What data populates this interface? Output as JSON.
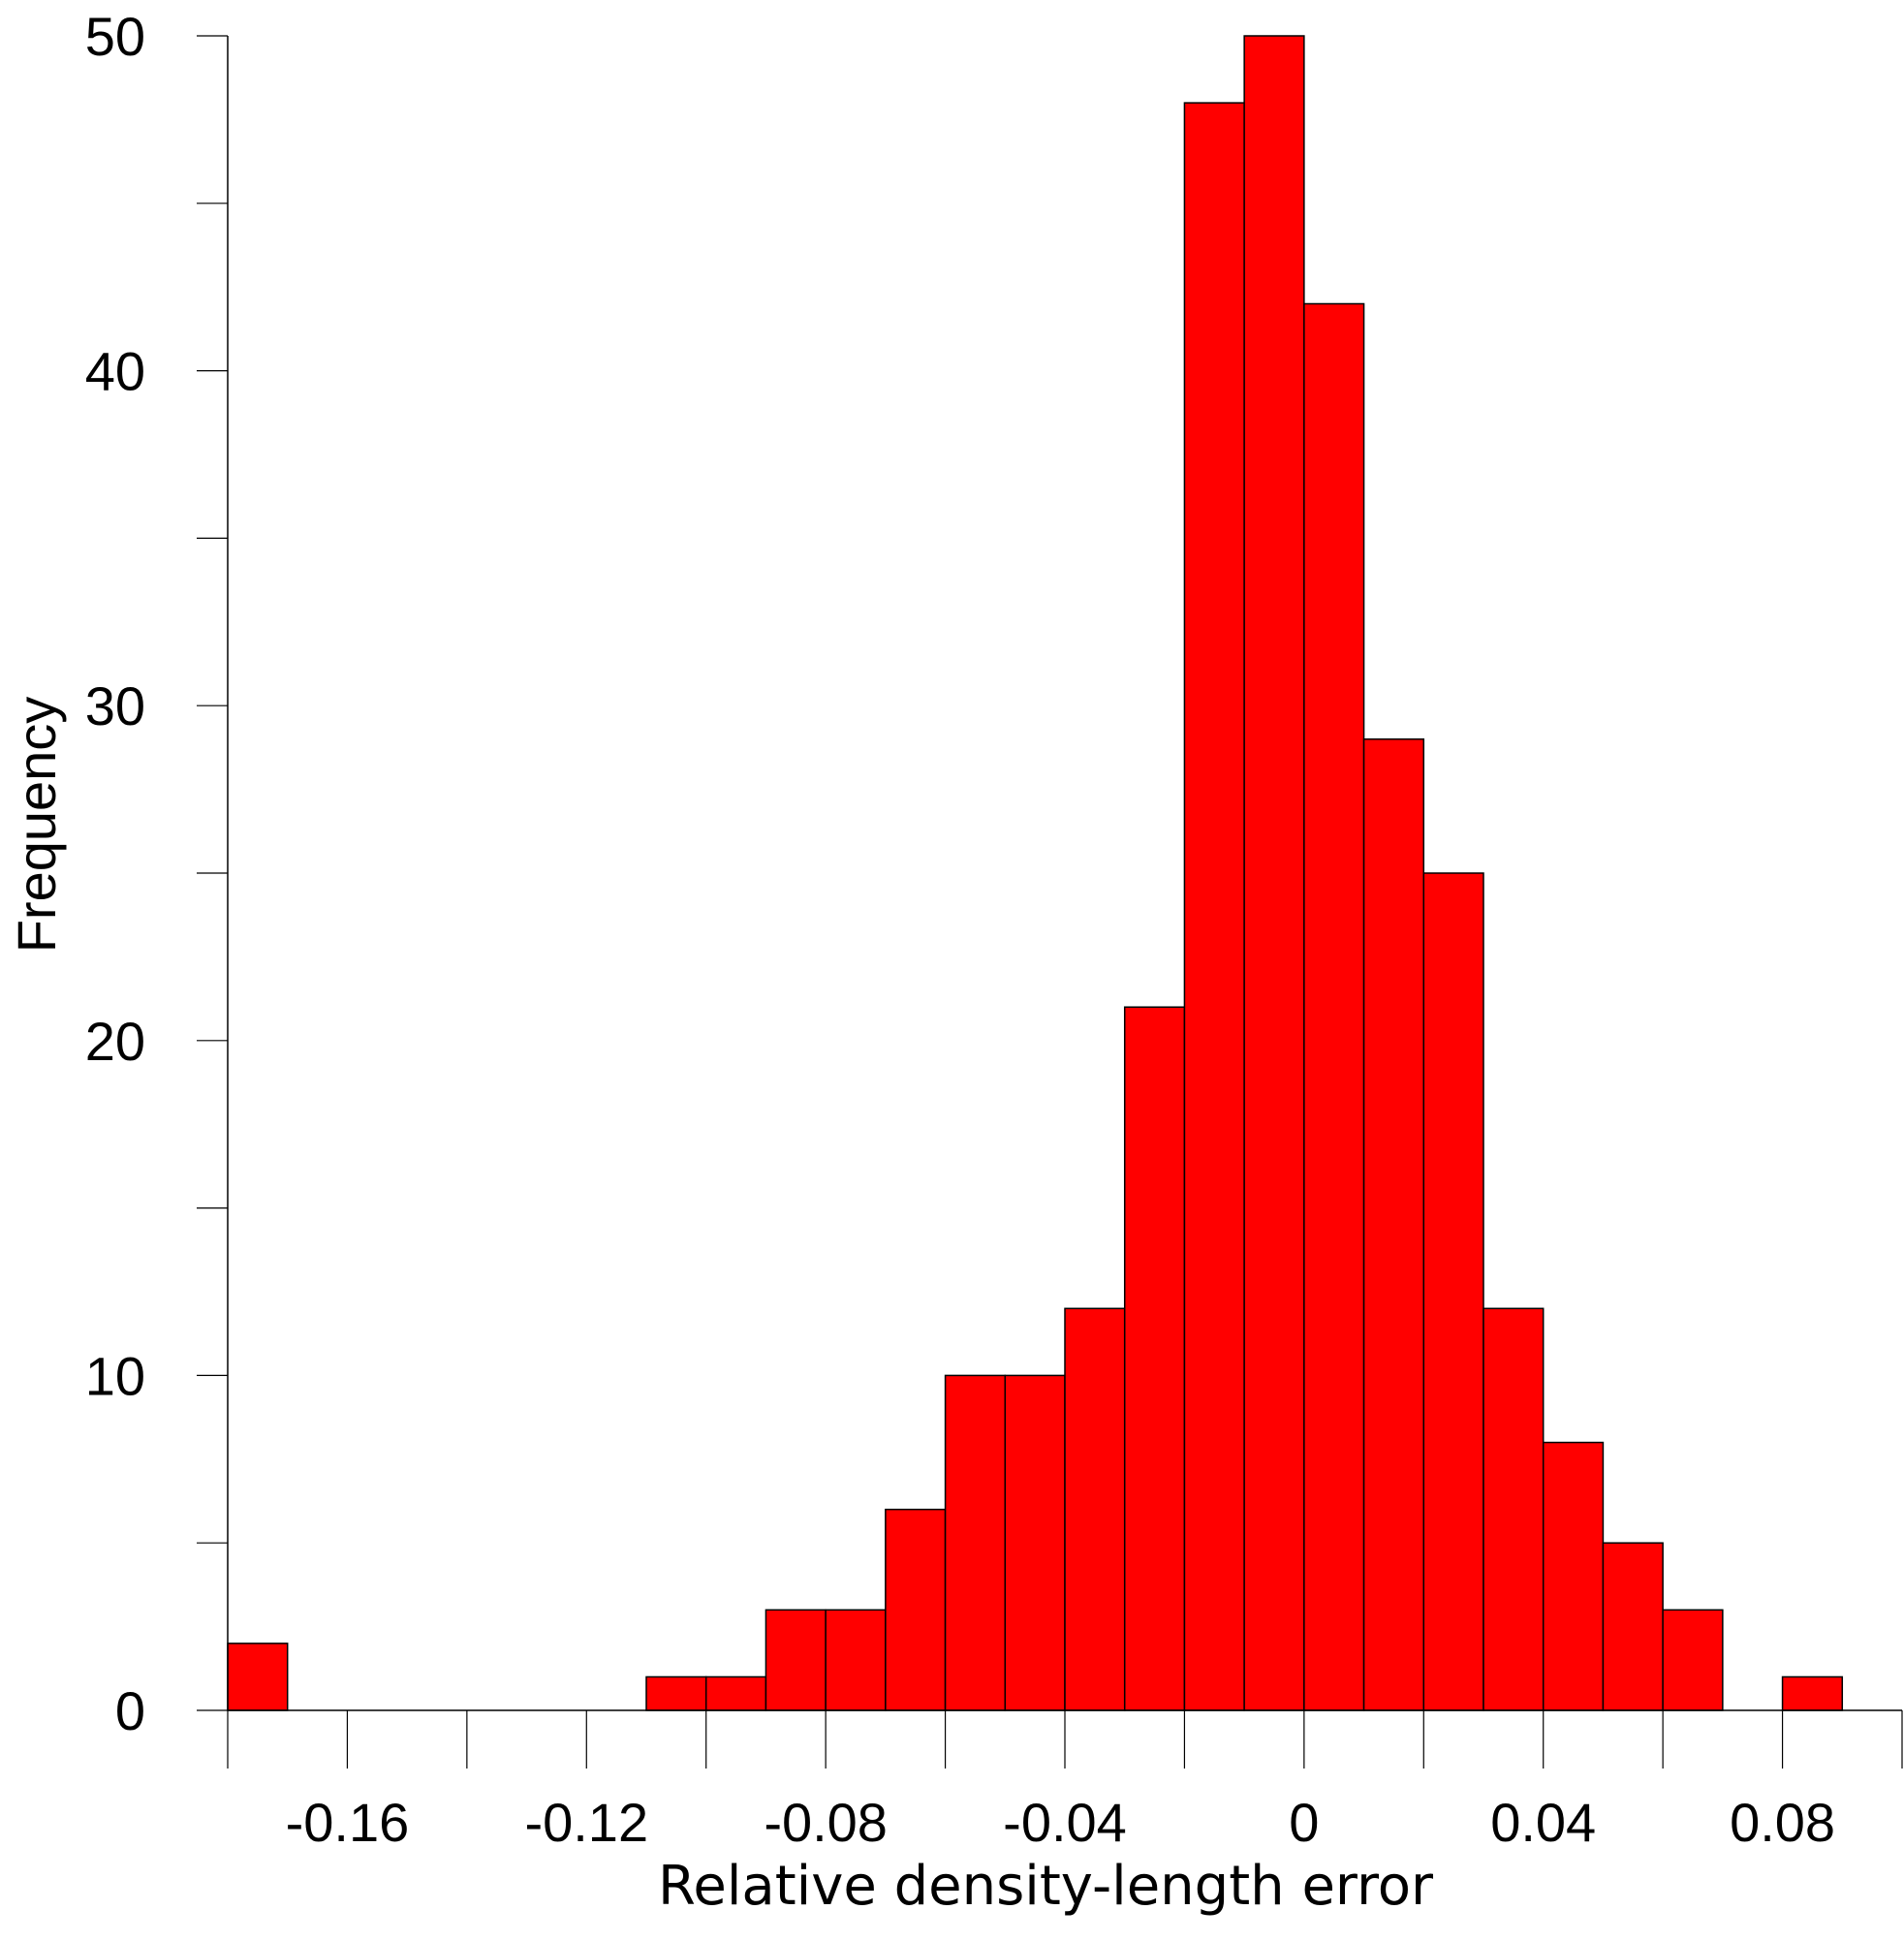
{
  "chart_data": {
    "type": "bar",
    "subtype": "histogram",
    "title": "",
    "xlabel": "Relative density-length error",
    "ylabel": "Frequency",
    "bin_width": 0.01,
    "xlim": [
      -0.18,
      0.1
    ],
    "ylim": [
      0,
      50
    ],
    "x_ticks": [
      {
        "value": -0.16,
        "label": "-0.16"
      },
      {
        "value": -0.12,
        "label": "-0.12"
      },
      {
        "value": -0.08,
        "label": "-0.08"
      },
      {
        "value": -0.04,
        "label": "-0.04"
      },
      {
        "value": 0,
        "label": "0"
      },
      {
        "value": 0.04,
        "label": "0.04"
      },
      {
        "value": 0.08,
        "label": "0.08"
      }
    ],
    "y_ticks": [
      {
        "value": 0,
        "label": "0"
      },
      {
        "value": 10,
        "label": "10"
      },
      {
        "value": 20,
        "label": "20"
      },
      {
        "value": 30,
        "label": "30"
      },
      {
        "value": 40,
        "label": "40"
      },
      {
        "value": 50,
        "label": "50"
      }
    ],
    "bins": [
      {
        "start": -0.18,
        "end": -0.17,
        "count": 2
      },
      {
        "start": -0.11,
        "end": -0.1,
        "count": 1
      },
      {
        "start": -0.1,
        "end": -0.09,
        "count": 1
      },
      {
        "start": -0.09,
        "end": -0.08,
        "count": 3
      },
      {
        "start": -0.08,
        "end": -0.07,
        "count": 3
      },
      {
        "start": -0.07,
        "end": -0.06,
        "count": 6
      },
      {
        "start": -0.06,
        "end": -0.05,
        "count": 10
      },
      {
        "start": -0.05,
        "end": -0.04,
        "count": 10
      },
      {
        "start": -0.04,
        "end": -0.03,
        "count": 12
      },
      {
        "start": -0.03,
        "end": -0.02,
        "count": 21
      },
      {
        "start": -0.02,
        "end": -0.01,
        "count": 48
      },
      {
        "start": -0.01,
        "end": 0.0,
        "count": 50
      },
      {
        "start": 0.0,
        "end": 0.01,
        "count": 42
      },
      {
        "start": 0.01,
        "end": 0.02,
        "count": 29
      },
      {
        "start": 0.02,
        "end": 0.03,
        "count": 25
      },
      {
        "start": 0.03,
        "end": 0.04,
        "count": 12
      },
      {
        "start": 0.04,
        "end": 0.05,
        "count": 8
      },
      {
        "start": 0.05,
        "end": 0.06,
        "count": 5
      },
      {
        "start": 0.06,
        "end": 0.07,
        "count": 3
      },
      {
        "start": 0.08,
        "end": 0.09,
        "count": 1
      }
    ],
    "bar_color": "#ff0000",
    "bar_edge_color": "#000000",
    "grid": false
  }
}
